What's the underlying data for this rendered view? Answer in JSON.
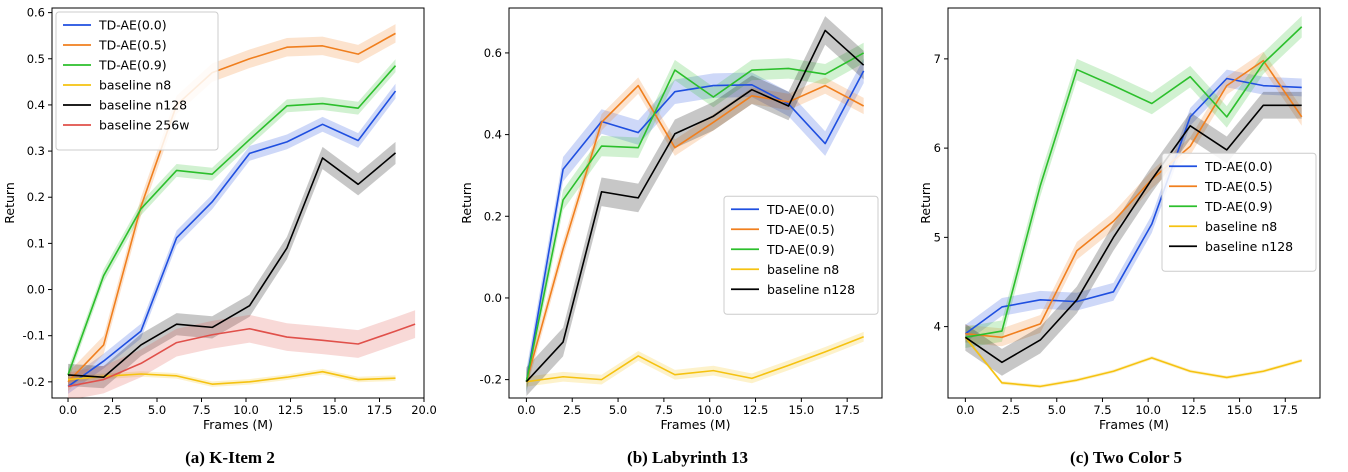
{
  "colors": {
    "td_ae_0": "#1f4fe0",
    "td_ae_05": "#f07f1e",
    "td_ae_09": "#2cbf2c",
    "baseline_n8": "#f5c211",
    "baseline_n128": "#000000",
    "baseline_256w": "#e0504a"
  },
  "chart_data": [
    {
      "type": "line",
      "caption": "(a) K-Item 2",
      "xlabel": "Frames (M)",
      "ylabel": "Return",
      "xlim": [
        -0.9,
        20.0
      ],
      "ylim": [
        -0.235,
        0.61
      ],
      "xticks": [
        "0.0",
        "2.5",
        "5.0",
        "7.5",
        "10.0",
        "12.5",
        "15.0",
        "17.5",
        "20.0"
      ],
      "yticks": [
        "-0.2",
        "-0.1",
        "0.0",
        "0.1",
        "0.2",
        "0.3",
        "0.4",
        "0.5",
        "0.6"
      ],
      "legend_position": "top-left",
      "series": [
        {
          "name": "TD-AE(0.0)",
          "color": "#1f4fe0",
          "band": 0.016,
          "x": [
            0.0,
            2.0,
            4.1,
            6.1,
            8.1,
            10.2,
            12.3,
            14.3,
            16.3,
            18.4
          ],
          "y": [
            -0.21,
            -0.155,
            -0.09,
            0.112,
            0.19,
            0.295,
            0.32,
            0.358,
            0.323,
            0.43
          ]
        },
        {
          "name": "TD-AE(0.5)",
          "color": "#f07f1e",
          "band": 0.02,
          "x": [
            0.0,
            2.0,
            4.1,
            6.1,
            8.1,
            10.2,
            12.3,
            14.3,
            16.3,
            18.4
          ],
          "y": [
            -0.2,
            -0.12,
            0.18,
            0.4,
            0.47,
            0.5,
            0.525,
            0.528,
            0.51,
            0.555
          ]
        },
        {
          "name": "TD-AE(0.9)",
          "color": "#2cbf2c",
          "band": 0.014,
          "x": [
            0.0,
            2.0,
            4.1,
            6.1,
            8.1,
            10.2,
            12.3,
            14.3,
            16.3,
            18.4
          ],
          "y": [
            -0.185,
            0.03,
            0.175,
            0.258,
            0.25,
            0.325,
            0.398,
            0.403,
            0.393,
            0.485
          ]
        },
        {
          "name": "baseline n8",
          "color": "#f5c211",
          "band": 0.006,
          "x": [
            0.0,
            2.0,
            4.1,
            6.1,
            8.1,
            10.2,
            12.3,
            14.3,
            16.3,
            18.4
          ],
          "y": [
            -0.195,
            -0.188,
            -0.183,
            -0.187,
            -0.205,
            -0.2,
            -0.19,
            -0.178,
            -0.195,
            -0.192
          ]
        },
        {
          "name": "baseline n128",
          "color": "#000000",
          "band": 0.024,
          "x": [
            0.0,
            2.0,
            4.1,
            6.1,
            8.1,
            10.2,
            12.3,
            14.3,
            16.3,
            18.4
          ],
          "y": [
            -0.185,
            -0.19,
            -0.12,
            -0.075,
            -0.082,
            -0.035,
            0.09,
            0.285,
            0.228,
            0.296
          ]
        },
        {
          "name": "baseline 256w",
          "color": "#e0504a",
          "band": 0.03,
          "x": [
            0.0,
            2.0,
            4.1,
            6.1,
            8.1,
            10.2,
            12.3,
            14.3,
            16.3,
            18.4,
            19.5
          ],
          "y": [
            -0.21,
            -0.195,
            -0.16,
            -0.115,
            -0.098,
            -0.085,
            -0.103,
            -0.11,
            -0.118,
            -0.09,
            -0.075
          ]
        }
      ]
    },
    {
      "type": "line",
      "caption": "(b) Labyrinth 13",
      "xlabel": "Frames (M)",
      "ylabel": "Return",
      "xlim": [
        -0.95,
        19.4
      ],
      "ylim": [
        -0.245,
        0.71
      ],
      "xticks": [
        "0.0",
        "2.5",
        "5.0",
        "7.5",
        "10.0",
        "12.5",
        "15.0",
        "17.5"
      ],
      "yticks": [
        "-0.2",
        "0.0",
        "0.2",
        "0.4",
        "0.6"
      ],
      "legend_position": "center-right",
      "series": [
        {
          "name": "TD-AE(0.0)",
          "color": "#1f4fe0",
          "band": 0.03,
          "x": [
            0.0,
            2.0,
            4.1,
            6.1,
            8.1,
            10.2,
            12.3,
            14.3,
            16.3,
            18.4
          ],
          "y": [
            -0.205,
            0.315,
            0.432,
            0.405,
            0.505,
            0.52,
            0.522,
            0.475,
            0.378,
            0.556
          ]
        },
        {
          "name": "TD-AE(0.5)",
          "color": "#f07f1e",
          "band": 0.02,
          "x": [
            0.0,
            2.0,
            4.1,
            6.1,
            8.1,
            10.2,
            12.3,
            14.3,
            16.3,
            18.4
          ],
          "y": [
            -0.205,
            0.12,
            0.43,
            0.52,
            0.368,
            0.43,
            0.495,
            0.48,
            0.52,
            0.47
          ]
        },
        {
          "name": "TD-AE(0.9)",
          "color": "#2cbf2c",
          "band": 0.025,
          "x": [
            0.0,
            2.0,
            4.1,
            6.1,
            8.1,
            10.2,
            12.3,
            14.3,
            16.3,
            18.4
          ],
          "y": [
            -0.205,
            0.24,
            0.372,
            0.368,
            0.558,
            0.492,
            0.558,
            0.562,
            0.548,
            0.6
          ]
        },
        {
          "name": "baseline n8",
          "color": "#f5c211",
          "band": 0.012,
          "x": [
            0.0,
            2.0,
            4.1,
            6.1,
            8.1,
            10.2,
            12.3,
            14.3,
            16.3,
            18.4
          ],
          "y": [
            -0.205,
            -0.193,
            -0.2,
            -0.142,
            -0.188,
            -0.178,
            -0.197,
            -0.165,
            -0.132,
            -0.095
          ]
        },
        {
          "name": "baseline n128",
          "color": "#000000",
          "band": 0.035,
          "x": [
            0.0,
            2.0,
            4.1,
            6.1,
            8.1,
            10.2,
            12.3,
            14.3,
            16.3,
            18.4
          ],
          "y": [
            -0.205,
            -0.108,
            0.26,
            0.245,
            0.402,
            0.445,
            0.51,
            0.47,
            0.655,
            0.57
          ]
        }
      ]
    },
    {
      "type": "line",
      "caption": "(c) Two Color 5",
      "xlabel": "Frames (M)",
      "ylabel": "Return",
      "xlim": [
        -0.95,
        19.4
      ],
      "ylim": [
        3.2,
        7.57
      ],
      "xticks": [
        "0.0",
        "2.5",
        "5.0",
        "7.5",
        "10.0",
        "12.5",
        "15.0",
        "17.5"
      ],
      "yticks": [
        "4",
        "5",
        "6",
        "7"
      ],
      "legend_position": "center-right",
      "series": [
        {
          "name": "TD-AE(0.0)",
          "color": "#1f4fe0",
          "band": 0.1,
          "x": [
            0.0,
            2.0,
            4.1,
            6.1,
            8.1,
            10.2,
            12.3,
            14.3,
            16.3,
            18.4
          ],
          "y": [
            3.92,
            4.22,
            4.3,
            4.28,
            4.39,
            5.15,
            6.35,
            6.78,
            6.7,
            6.68
          ]
        },
        {
          "name": "TD-AE(0.5)",
          "color": "#f07f1e",
          "band": 0.1,
          "x": [
            0.0,
            2.0,
            4.1,
            6.1,
            8.1,
            10.2,
            12.3,
            14.3,
            16.3,
            18.4
          ],
          "y": [
            3.92,
            3.88,
            4.03,
            4.85,
            5.18,
            5.65,
            6.02,
            6.7,
            6.98,
            6.35
          ]
        },
        {
          "name": "TD-AE(0.9)",
          "color": "#2cbf2c",
          "band": 0.12,
          "x": [
            0.0,
            2.0,
            4.1,
            6.1,
            8.1,
            10.2,
            12.3,
            14.3,
            16.3,
            18.4
          ],
          "y": [
            3.88,
            3.95,
            5.58,
            6.88,
            6.7,
            6.5,
            6.8,
            6.35,
            6.95,
            7.36
          ]
        },
        {
          "name": "baseline n8",
          "color": "#f5c211",
          "band": 0.02,
          "x": [
            0.0,
            2.0,
            4.1,
            6.1,
            8.1,
            10.2,
            12.3,
            14.3,
            16.3,
            18.4
          ],
          "y": [
            3.88,
            3.37,
            3.33,
            3.4,
            3.5,
            3.65,
            3.5,
            3.43,
            3.5,
            3.62
          ]
        },
        {
          "name": "baseline n128",
          "color": "#000000",
          "band": 0.15,
          "x": [
            0.0,
            2.0,
            4.1,
            6.1,
            8.1,
            10.2,
            12.3,
            14.3,
            16.3,
            18.4
          ],
          "y": [
            3.88,
            3.6,
            3.85,
            4.3,
            5.0,
            5.65,
            6.25,
            5.98,
            6.48,
            6.48
          ]
        }
      ]
    }
  ]
}
